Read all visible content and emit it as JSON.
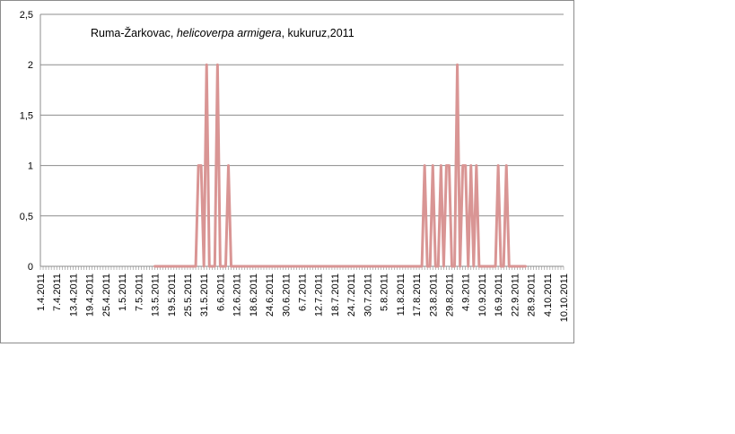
{
  "chart_data": {
    "type": "line",
    "title": {
      "prefix": "Ruma-Žarkovac, ",
      "species": "helicoverpa armigera",
      "suffix": ", kukuruz,2011"
    },
    "xlabel": "",
    "ylabel": "",
    "ylim": [
      0,
      2.5
    ],
    "y_ticks": [
      "0",
      "0,5",
      "1",
      "1,5",
      "2",
      "2,5"
    ],
    "x_tick_labels": [
      "1.4.2011",
      "7.4.2011",
      "13.4.2011",
      "19.4.2011",
      "25.4.2011",
      "1.5.2011",
      "7.5.2011",
      "13.5.2011",
      "19.5.2011",
      "25.5.2011",
      "31.5.2011",
      "6.6.2011",
      "12.6.2011",
      "18.6.2011",
      "24.6.2011",
      "30.6.2011",
      "6.7.2011",
      "12.7.2011",
      "18.7.2011",
      "24.7.2011",
      "30.7.2011",
      "5.8.2011",
      "11.8.2011",
      "17.8.2011",
      "23.8.2011",
      "29.8.2011",
      "4.9.2011",
      "10.9.2011",
      "16.9.2011",
      "22.9.2011",
      "28.9.2011",
      "4.10.2011",
      "10.10.2011"
    ],
    "grid": true,
    "legend": "none",
    "series_color": "#d99594",
    "series": [
      {
        "points": [
          [
            "13.5.2011",
            0
          ],
          [
            "28.5.2011",
            0
          ],
          [
            "29.5.2011",
            1
          ],
          [
            "30.5.2011",
            1
          ],
          [
            "31.5.2011",
            0
          ],
          [
            "1.6.2011",
            2
          ],
          [
            "2.6.2011",
            0
          ],
          [
            "4.6.2011",
            0
          ],
          [
            "5.6.2011",
            2
          ],
          [
            "6.6.2011",
            0
          ],
          [
            "8.6.2011",
            0
          ],
          [
            "9.6.2011",
            1
          ],
          [
            "10.6.2011",
            0
          ],
          [
            "20.6.2011",
            0
          ],
          [
            "30.6.2011",
            0
          ],
          [
            "10.7.2011",
            0
          ],
          [
            "20.7.2011",
            0
          ],
          [
            "30.7.2011",
            0
          ],
          [
            "10.8.2011",
            0
          ],
          [
            "19.8.2011",
            0
          ],
          [
            "20.8.2011",
            1
          ],
          [
            "21.8.2011",
            0
          ],
          [
            "22.8.2011",
            0
          ],
          [
            "23.8.2011",
            1
          ],
          [
            "24.8.2011",
            0
          ],
          [
            "25.8.2011",
            0
          ],
          [
            "26.8.2011",
            1
          ],
          [
            "27.8.2011",
            0
          ],
          [
            "28.8.2011",
            1
          ],
          [
            "29.8.2011",
            1
          ],
          [
            "30.8.2011",
            0
          ],
          [
            "31.8.2011",
            0
          ],
          [
            "1.9.2011",
            2
          ],
          [
            "2.9.2011",
            0
          ],
          [
            "3.9.2011",
            1
          ],
          [
            "4.9.2011",
            1
          ],
          [
            "5.9.2011",
            0
          ],
          [
            "6.9.2011",
            1
          ],
          [
            "7.9.2011",
            0
          ],
          [
            "8.9.2011",
            1
          ],
          [
            "9.9.2011",
            0
          ],
          [
            "10.9.2011",
            0
          ],
          [
            "15.9.2011",
            0
          ],
          [
            "16.9.2011",
            1
          ],
          [
            "17.9.2011",
            0
          ],
          [
            "18.9.2011",
            0
          ],
          [
            "19.9.2011",
            1
          ],
          [
            "20.9.2011",
            0
          ],
          [
            "26.9.2011",
            0
          ]
        ]
      }
    ]
  }
}
